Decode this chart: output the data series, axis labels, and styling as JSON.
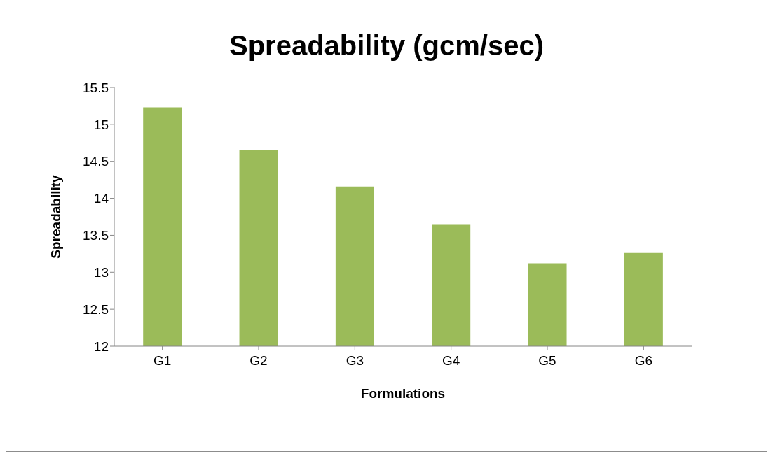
{
  "chart_data": {
    "type": "bar",
    "title": "Spreadability (gcm/sec)",
    "xlabel": "Formulations",
    "ylabel": "Spreadability",
    "categories": [
      "G1",
      "G2",
      "G3",
      "G4",
      "G5",
      "G6"
    ],
    "values": [
      15.23,
      14.65,
      14.16,
      13.65,
      13.12,
      13.26
    ],
    "color": "#9bbb59",
    "ylim": [
      12,
      15.5
    ],
    "yticks": [
      12,
      12.5,
      13,
      13.5,
      14,
      14.5,
      15,
      15.5
    ],
    "grid": false,
    "legend": false
  }
}
